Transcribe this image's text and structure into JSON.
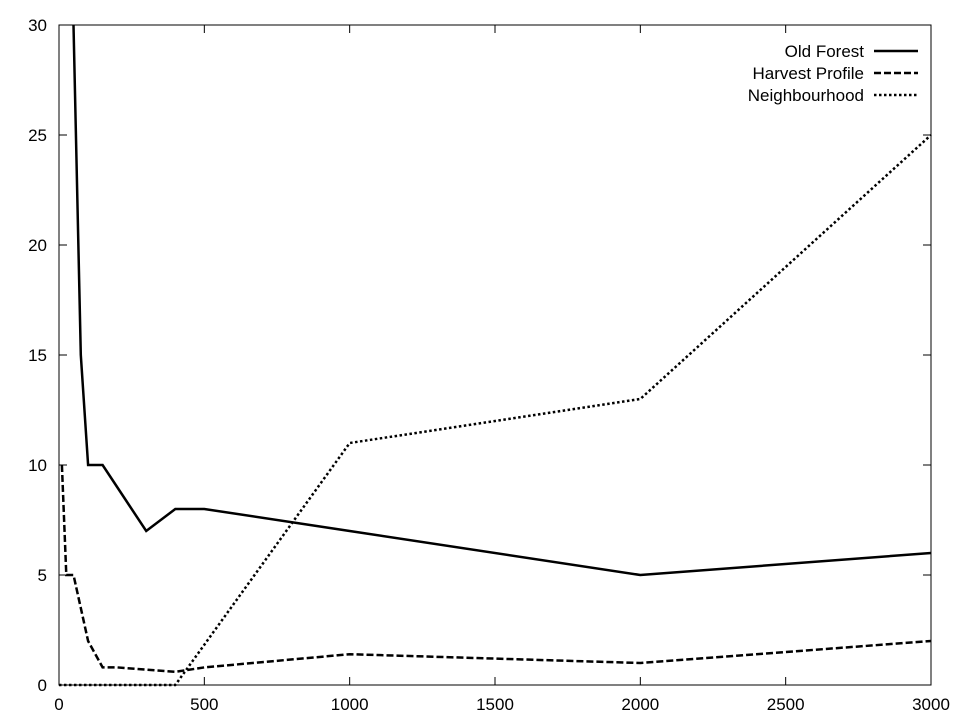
{
  "chart_data": {
    "type": "line",
    "title": "",
    "xlabel": "",
    "ylabel": "",
    "xlim": [
      0,
      3000
    ],
    "ylim": [
      0,
      30
    ],
    "xticks": [
      0,
      500,
      1000,
      1500,
      2000,
      2500,
      3000
    ],
    "yticks": [
      0,
      5,
      10,
      15,
      20,
      25,
      30
    ],
    "grid": false,
    "legend_position": "top-right",
    "series": [
      {
        "name": "Old Forest",
        "style": "solid",
        "x": [
          50,
          75,
          100,
          150,
          300,
          400,
          500,
          1000,
          2000,
          3000
        ],
        "y": [
          30,
          15,
          10,
          10,
          7,
          8,
          8,
          7,
          5,
          6
        ]
      },
      {
        "name": "Harvest Profile",
        "style": "dashed",
        "x": [
          10,
          25,
          50,
          100,
          150,
          200,
          300,
          400,
          500,
          1000,
          2000,
          3000
        ],
        "y": [
          10,
          5,
          5,
          2,
          0.8,
          0.8,
          0.7,
          0.6,
          0.8,
          1.4,
          1.0,
          2.0
        ]
      },
      {
        "name": "Neighbourhood",
        "style": "dotted",
        "x": [
          0,
          200,
          400,
          1000,
          2000,
          3000
        ],
        "y": [
          0,
          0,
          0,
          11,
          13,
          25
        ]
      }
    ]
  }
}
